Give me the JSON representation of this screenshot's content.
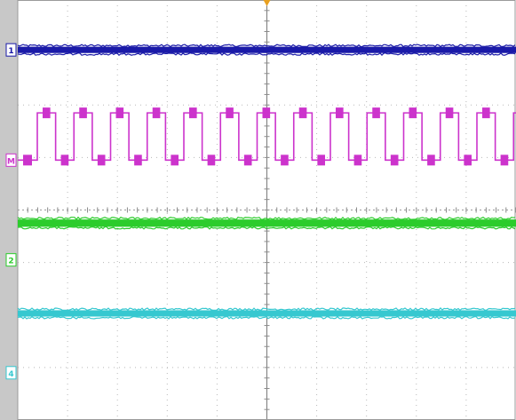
{
  "chart_data": {
    "type": "line",
    "title": "",
    "xlabel": "",
    "ylabel": "",
    "x_divisions": 10,
    "y_divisions": 8,
    "grid": true,
    "trigger_marker": "top-center",
    "series": [
      {
        "marker": "1",
        "kind": "dc",
        "level_div": 7.05,
        "noise_div": 0.06,
        "color": "#1a1aa8"
      },
      {
        "marker": "M",
        "kind": "square",
        "low_div": 4.95,
        "high_div": 5.85,
        "cycles": 13.6,
        "start_phase": "low",
        "color": "#cc33cc"
      },
      {
        "marker": "2",
        "kind": "dc",
        "level_div": 3.75,
        "noise_div": 0.07,
        "color": "#2ccc2c"
      },
      {
        "marker": "4",
        "kind": "dc",
        "level_div": 2.03,
        "noise_div": 0.06,
        "color": "#36c8d0"
      }
    ],
    "markers": [
      {
        "label": "1",
        "level_div": 7.05,
        "color": "#1a1aa8"
      },
      {
        "label": "M",
        "level_div": 4.95,
        "color": "#cc33cc"
      },
      {
        "label": "2",
        "level_div": 3.05,
        "color": "#2ccc2c"
      },
      {
        "label": "4",
        "level_div": 0.9,
        "color": "#36c8d0"
      }
    ],
    "colors": {
      "background": "#ffffff",
      "grid": "#b8b8b8",
      "left_bar": "#c8c8c8",
      "trigger": "#e8a020"
    }
  }
}
